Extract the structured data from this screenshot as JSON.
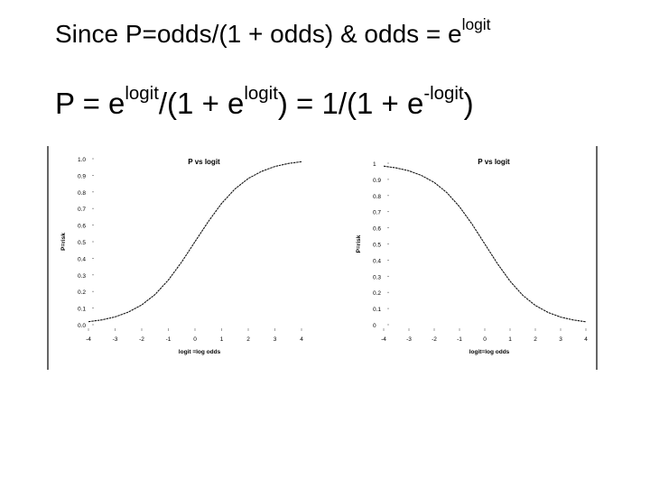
{
  "equations": {
    "line1": {
      "prefix": "Since P=odds/(1 + odds) & odds = e",
      "sup": "logit"
    },
    "line2": {
      "p1": "P = e",
      "s1": "logit",
      "p2": "/(1 + e",
      "s2": "logit",
      "p3": ") = 1/(1 + e",
      "s3": "-logit",
      "p4": ")"
    }
  },
  "chart_data": [
    {
      "type": "line",
      "title": "P vs logit",
      "xlabel": "logit =log odds",
      "ylabel": "P=risk",
      "xlim": [
        -4,
        4
      ],
      "ylim": [
        0,
        1
      ],
      "xticks": [
        "-4",
        "-3",
        "-2",
        "-1",
        "0",
        "1",
        "2",
        "3",
        "4"
      ],
      "yticks": [
        "0.0",
        "0.1",
        "0.2",
        "0.3",
        "0.4",
        "0.5",
        "0.6",
        "0.7",
        "0.8",
        "0.9",
        "1.0"
      ],
      "x": [
        -4,
        -3.5,
        -3,
        -2.5,
        -2,
        -1.5,
        -1,
        -0.5,
        0,
        0.5,
        1,
        1.5,
        2,
        2.5,
        3,
        3.5,
        4
      ],
      "y": [
        0.018,
        0.029,
        0.047,
        0.076,
        0.119,
        0.182,
        0.269,
        0.378,
        0.5,
        0.622,
        0.731,
        0.818,
        0.881,
        0.924,
        0.953,
        0.971,
        0.982
      ],
      "grid": false
    },
    {
      "type": "line",
      "title": "P vs logit",
      "xlabel": "logit=log odds",
      "ylabel": "P=risk",
      "xlim": [
        -4,
        4
      ],
      "ylim": [
        0,
        1
      ],
      "xticks": [
        "-4",
        "-3",
        "-2",
        "-1",
        "0",
        "1",
        "2",
        "3",
        "4"
      ],
      "yticks": [
        "0",
        "0.1",
        "0.2",
        "0.3",
        "0.4",
        "0.5",
        "0.6",
        "0.7",
        "0.8",
        "0.9",
        "1"
      ],
      "x": [
        -4,
        -3.5,
        -3,
        -2.5,
        -2,
        -1.5,
        -1,
        -0.5,
        0,
        0.5,
        1,
        1.5,
        2,
        2.5,
        3,
        3.5,
        4
      ],
      "y": [
        0.982,
        0.971,
        0.953,
        0.924,
        0.881,
        0.818,
        0.731,
        0.622,
        0.5,
        0.378,
        0.269,
        0.182,
        0.119,
        0.076,
        0.047,
        0.029,
        0.018
      ],
      "grid": false
    }
  ]
}
